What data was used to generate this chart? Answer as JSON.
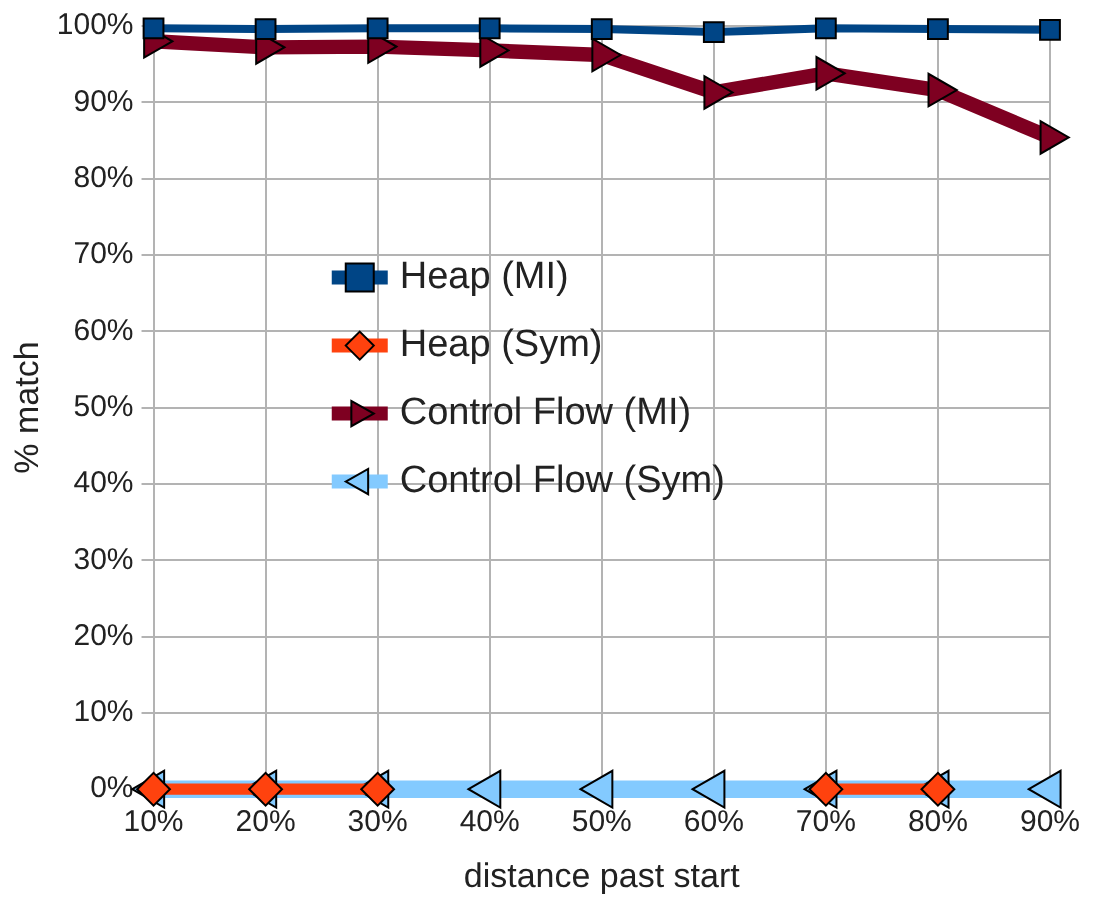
{
  "chart_data": {
    "type": "line",
    "xlabel": "distance past start",
    "ylabel": "% match",
    "categories": [
      "10%",
      "20%",
      "30%",
      "40%",
      "50%",
      "60%",
      "70%",
      "80%",
      "90%"
    ],
    "series": [
      {
        "name": "Heap (MI)",
        "color": "#004586",
        "marker": "square",
        "values": [
          99.7,
          99.6,
          99.7,
          99.7,
          99.6,
          99.2,
          99.7,
          99.6,
          99.5
        ]
      },
      {
        "name": "Heap (Sym)",
        "color": "#ff420e",
        "marker": "diamond",
        "values": [
          0,
          0,
          0,
          null,
          null,
          null,
          0,
          0,
          null
        ]
      },
      {
        "name": "Control Flow (MI)",
        "color": "#7e0021",
        "marker": "triangle",
        "values": [
          98,
          97.2,
          97.3,
          96.8,
          96.2,
          91.3,
          93.8,
          91.6,
          85.4
        ]
      },
      {
        "name": "Control Flow (Sym)",
        "color": "#83caff",
        "marker": "triangle",
        "values": [
          0,
          0,
          0,
          0,
          0,
          0,
          0,
          0,
          0
        ]
      }
    ],
    "ylim": [
      0,
      100
    ],
    "yticks": [
      {
        "value": 0,
        "label": "0%"
      },
      {
        "value": 10,
        "label": "10%"
      },
      {
        "value": 20,
        "label": "20%"
      },
      {
        "value": 30,
        "label": "30%"
      },
      {
        "value": 40,
        "label": "40%"
      },
      {
        "value": 50,
        "label": "50%"
      },
      {
        "value": 60,
        "label": "60%"
      },
      {
        "value": 70,
        "label": "70%"
      },
      {
        "value": 80,
        "label": "80%"
      },
      {
        "value": 90,
        "label": "90%"
      },
      {
        "value": 100,
        "label": "100%"
      }
    ],
    "grid": true,
    "legend": "center"
  }
}
